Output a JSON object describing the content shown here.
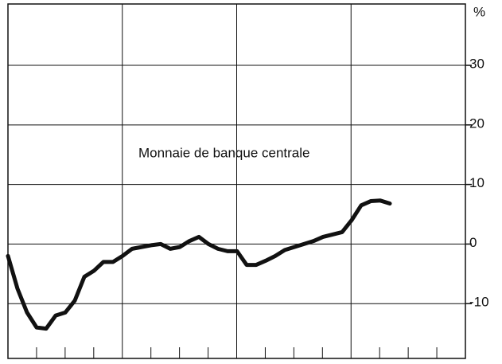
{
  "chart_data": {
    "type": "line",
    "annotation": "Monnaie de banque centrale",
    "unit": "%",
    "categories": [
      null,
      null,
      null,
      null,
      null,
      null,
      null,
      null,
      null,
      null,
      null,
      null,
      null,
      null,
      null,
      null,
      null,
      null,
      null,
      null,
      null,
      null,
      null,
      null,
      null,
      null,
      null,
      null,
      null,
      null,
      null,
      null,
      null,
      null,
      null,
      null,
      null,
      null,
      null,
      null,
      null
    ],
    "series": [
      {
        "color": "#111111",
        "values": [
          -2,
          -7.5,
          -11.5,
          -14,
          -14.2,
          -12,
          -11.5,
          -9.5,
          -5.5,
          -4.5,
          -3,
          -3,
          -2,
          -0.8,
          -0.5,
          -0.2,
          0,
          -0.8,
          -0.5,
          0.5,
          1.2,
          0,
          -0.8,
          -1.2,
          -1.2,
          -3.5,
          -3.5,
          -2.8,
          -2,
          -1,
          -0.5,
          0,
          0.5,
          1.2,
          1.6,
          2,
          4,
          6.5,
          7.2,
          7.3,
          6.8
        ]
      }
    ],
    "ylim": [
      -19.2,
      40.3
    ],
    "yticks": [
      -10,
      0,
      10,
      20,
      30
    ],
    "grid": true
  }
}
